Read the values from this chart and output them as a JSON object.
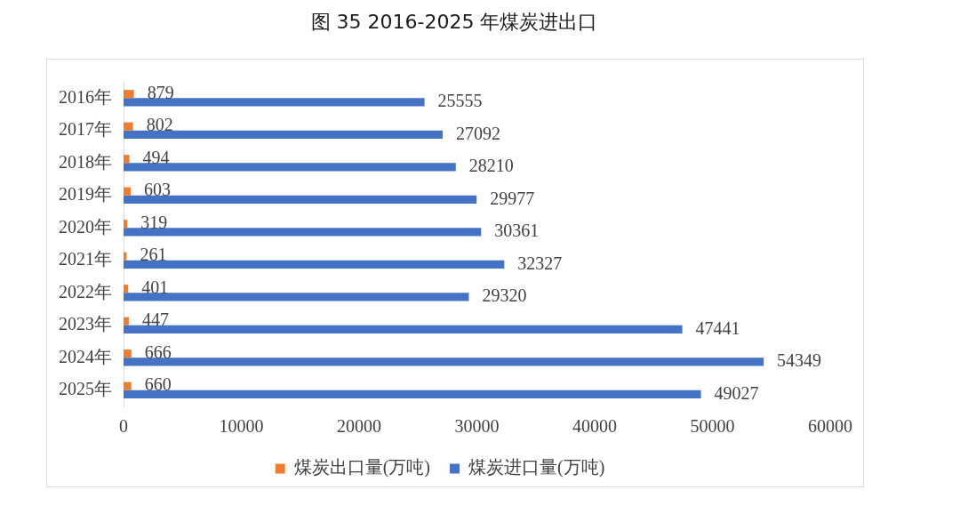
{
  "chart_data": {
    "type": "bar",
    "title": "图 35 2016-2025 年煤炭进出口",
    "orientation": "horizontal",
    "categories": [
      "2016年",
      "2017年",
      "2018年",
      "2019年",
      "2020年",
      "2021年",
      "2022年",
      "2023年",
      "2024年",
      "2025年"
    ],
    "series": [
      {
        "name": "煤炭出口量(万吨)",
        "color": "#ed7d31",
        "values": [
          879,
          802,
          494,
          603,
          319,
          261,
          401,
          447,
          666,
          660
        ]
      },
      {
        "name": "煤炭进口量(万吨)",
        "color": "#4472c4",
        "values": [
          25555,
          27092,
          28210,
          29977,
          30361,
          32327,
          29320,
          47441,
          54349,
          49027
        ]
      }
    ],
    "xlim": [
      0,
      60000
    ],
    "xticks": [
      0,
      10000,
      20000,
      30000,
      40000,
      50000,
      60000
    ],
    "legend": "bottom",
    "data_labels": true
  }
}
